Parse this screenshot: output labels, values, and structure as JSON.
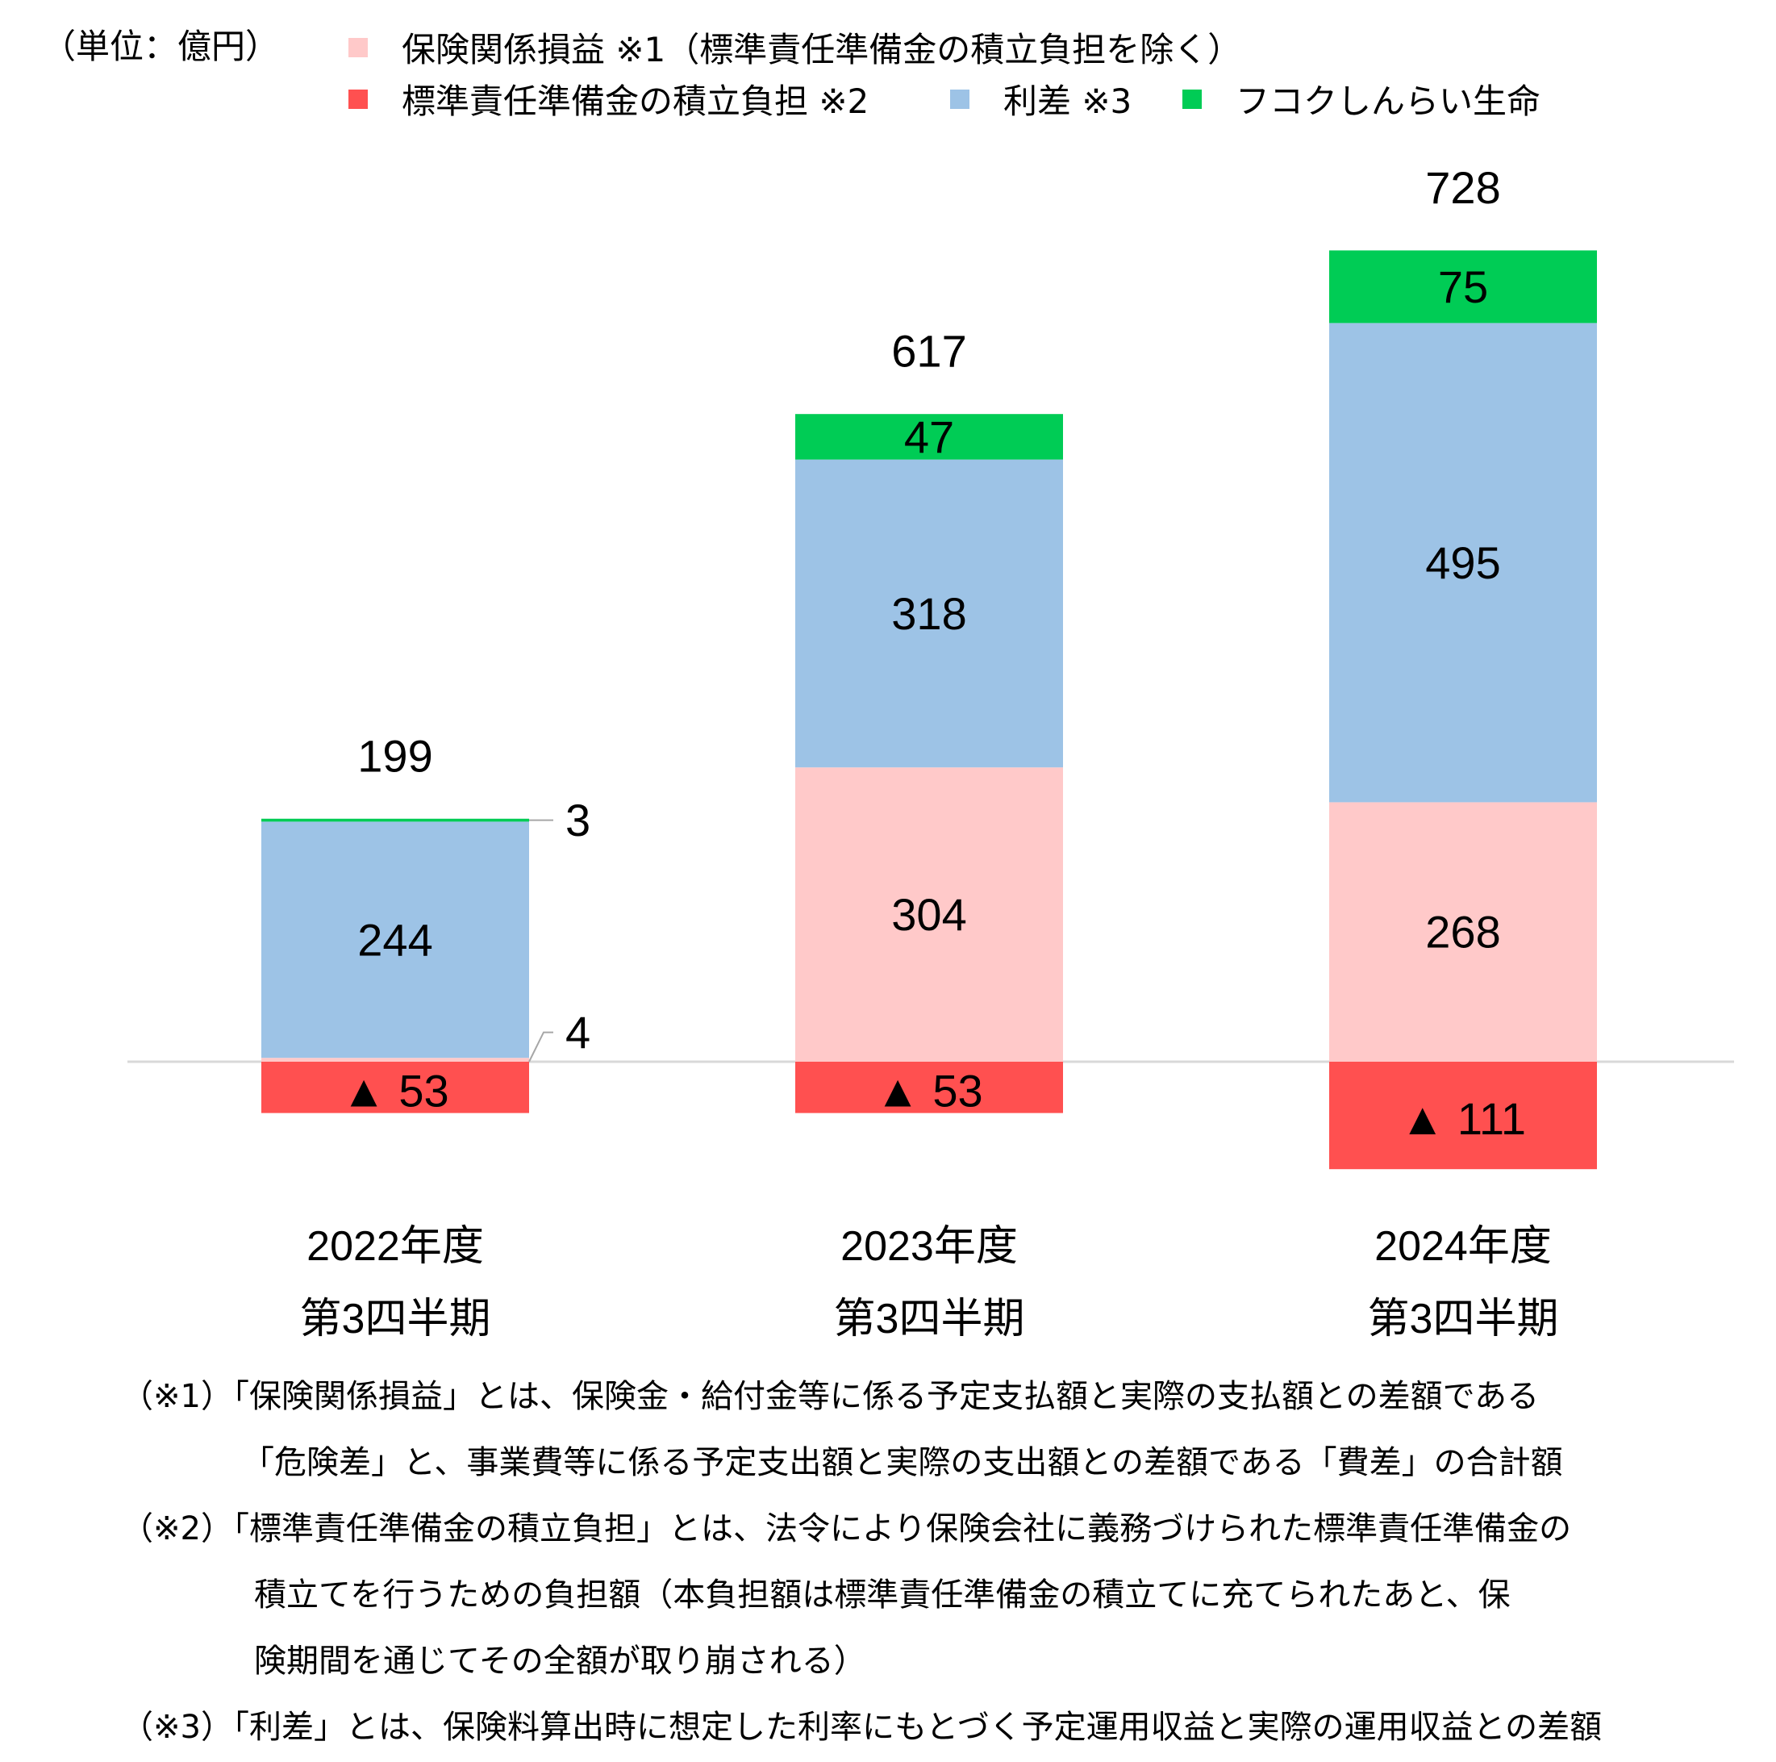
{
  "unit_label": "（単位：億円）",
  "legend": [
    {
      "label": "保険関係損益 ※1（標準責任準備金の積立負担を除く）",
      "color": "#FFC9C9"
    },
    {
      "label": "標準責任準備金の積立負担 ※2",
      "color": "#FF5050"
    },
    {
      "label": "利差 ※3",
      "color": "#9DC3E6"
    },
    {
      "label": "フコクしんらい生命",
      "color": "#00CC55"
    }
  ],
  "chart_data": {
    "type": "bar",
    "stacked": true,
    "categories": [
      {
        "line1": "2022年度",
        "line2": "第3四半期"
      },
      {
        "line1": "2023年度",
        "line2": "第3四半期"
      },
      {
        "line1": "2024年度",
        "line2": "第3四半期"
      }
    ],
    "series": [
      {
        "name": "保険関係損益 ※1（標準責任準備金の積立負担を除く）",
        "color": "#FFC9C9",
        "values": [
          4,
          304,
          268
        ],
        "labels": [
          "4",
          "304",
          "268"
        ]
      },
      {
        "name": "標準責任準備金の積立負担 ※2",
        "color": "#FF5050",
        "values": [
          -53,
          -53,
          -111
        ],
        "labels": [
          "▲ 53",
          "▲ 53",
          "▲ 111"
        ]
      },
      {
        "name": "利差 ※3",
        "color": "#9DC3E6",
        "values": [
          244,
          318,
          495
        ],
        "labels": [
          "244",
          "318",
          "495"
        ]
      },
      {
        "name": "フコクしんらい生命",
        "color": "#00CC55",
        "values": [
          3,
          47,
          75
        ],
        "labels": [
          "3",
          "47",
          "75"
        ]
      }
    ],
    "totals": [
      "199",
      "617",
      "728"
    ],
    "grid": false
  },
  "notes": [
    {
      "marker": "（※1）",
      "lines": [
        "「保険関係損益」とは、保険金・給付金等に係る予定支払額と実際の支払額との差額である",
        "「危険差」と、事業費等に係る予定支出額と実際の支出額との差額である「費差」の合計額"
      ]
    },
    {
      "marker": "（※2）",
      "lines": [
        "「標準責任準備金の積立負担」とは、法令により保険会社に義務づけられた標準責任準備金の",
        "積立てを行うための負担額（本負担額は標準責任準備金の積立てに充てられたあと、保",
        "険期間を通じてその全額が取り崩される）"
      ]
    },
    {
      "marker": "（※3）",
      "lines": [
        "「利差」とは、保険料算出時に想定した利率にもとづく予定運用収益と実際の運用収益との差額"
      ]
    }
  ]
}
